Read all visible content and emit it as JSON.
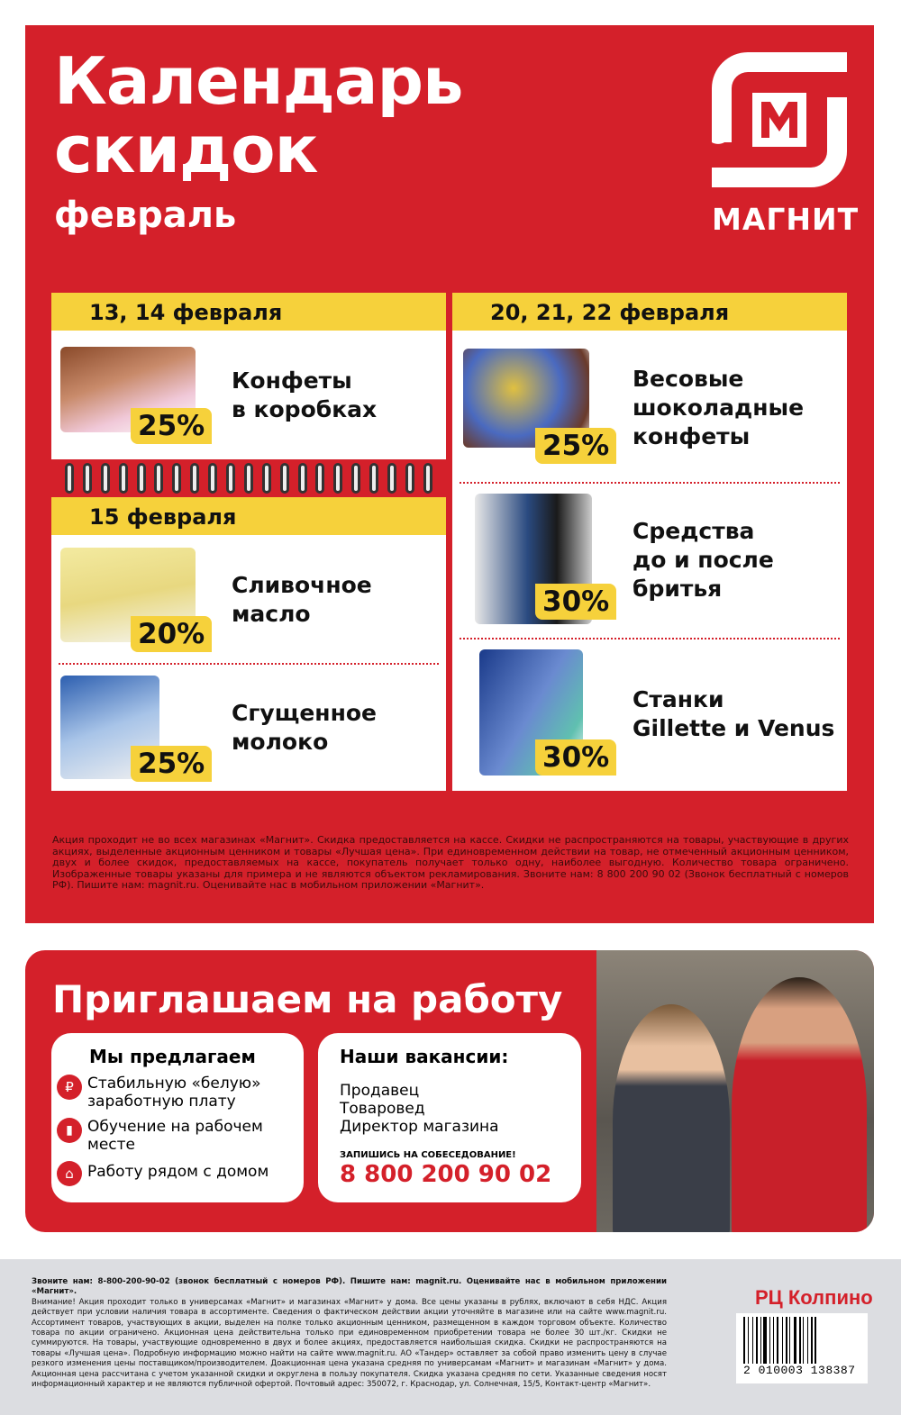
{
  "header": {
    "title_line1": "Календарь",
    "title_line2": "скидок",
    "month": "февраль",
    "logo_text": "МАГНИТ",
    "colors": {
      "red": "#d4202a",
      "yellow": "#f6d13b"
    }
  },
  "left_column": {
    "sections": [
      {
        "date": "13, 14 февраля",
        "items": [
          {
            "name": [
              "Конфеты",
              "в коробках"
            ],
            "discount": "25%"
          }
        ]
      },
      {
        "date": "15 февраля",
        "items": [
          {
            "name": [
              "Сливочное",
              "масло"
            ],
            "discount": "20%"
          },
          {
            "name": [
              "Сгущенное",
              "молоко"
            ],
            "discount": "25%"
          }
        ]
      }
    ]
  },
  "right_column": {
    "date": "20, 21, 22 февраля",
    "items": [
      {
        "name": [
          "Весовые",
          "шоколадные",
          "конфеты"
        ],
        "discount": "25%"
      },
      {
        "name": [
          "Средства",
          "до и после",
          "бритья"
        ],
        "discount": "30%"
      },
      {
        "name": [
          "Станки",
          "Gillette и Venus"
        ],
        "discount": "30%"
      }
    ]
  },
  "disclaimer": "Акция проходит не во всех магазинах «Магнит». Скидка предоставляется на кассе.  Скидки не распространяются на товары, участвующие в других акциях, выделенные акционным ценником и товары «Лучшая цена». При единовременном действии на товар, не отмеченный акционным ценником, двух и более скидок, предоставляемых на кассе, покупатель получает только одну, наиболее выгодную. Количество товара ограничено. Изображенные товары указаны для примера и не являются объектом рекламирования. Звоните нам: 8 800 200 90 02 (Звонок бесплатный с номеров РФ). Пишите нам: magnit.ru. Оценивайте нас в мобильном приложении «Магнит».",
  "jobs": {
    "title": "Приглашаем на работу",
    "offer_title": "Мы предлагаем",
    "offers": [
      {
        "icon": "hand-ruble-icon",
        "text": "Стабильную «белую» заработную плату"
      },
      {
        "icon": "book-icon",
        "text": "Обучение на рабочем месте"
      },
      {
        "icon": "house-icon",
        "text": "Работу рядом с домом"
      }
    ],
    "vacancies_title": "Наши вакансии:",
    "vacancies": [
      "Продавец",
      "Товаровед",
      "Директор магазина"
    ],
    "signup": "ЗАПИШИСЬ НА СОБЕСЕДОВАНИЕ!",
    "phone": "8 800 200 90 02"
  },
  "footer": {
    "bold_line": "Звоните нам: 8-800-200-90-02 (звонок бесплатный с номеров РФ). Пишите нам: magnit.ru. Оценивайте нас в мобильном приложении «Магнит».",
    "text": "Внимание! Акция проходит только в универсамах «Магнит» и магазинах «Магнит» у дома. Все цены указаны в рублях, включают в себя НДС. Акция действует при условии наличия товара в ассортименте. Сведения о фактическом действии акции уточняйте в магазине или на сайте www.magnit.ru. Ассортимент товаров, участвующих в акции, выделен на полке только акционным ценником, размещенном в каждом торговом объекте. Количество товара по акции ограничено. Акционная цена действительна только при единовременном приобретении товара не более 30 шт./кг. Скидки не суммируются. На товары, участвующие одновременно в двух и более акциях, предоставляется наибольшая скидка. Скидки не распространяются на товары «Лучшая цена». Подробную информацию можно найти на сайте www.magnit.ru. АО «Тандер» оставляет за собой право изменить цену в случае резкого изменения цены поставщиком/производителем. Доакционная цена указана средняя по универсамам «Магнит» и магазинам «Магнит» у дома. Акционная цена рассчитана с учетом указанной скидки и округлена в пользу покупателя. Скидка указана средняя по сети. Указанные сведения носят информационный характер и не являются публичной офертой. Почтовый адрес: 350072, г. Краснодар, ул. Солнечная, 15/5, Контакт-центр «Магнит».",
    "distribution_center": "РЦ Колпино",
    "barcode": "2 010003 138387"
  }
}
